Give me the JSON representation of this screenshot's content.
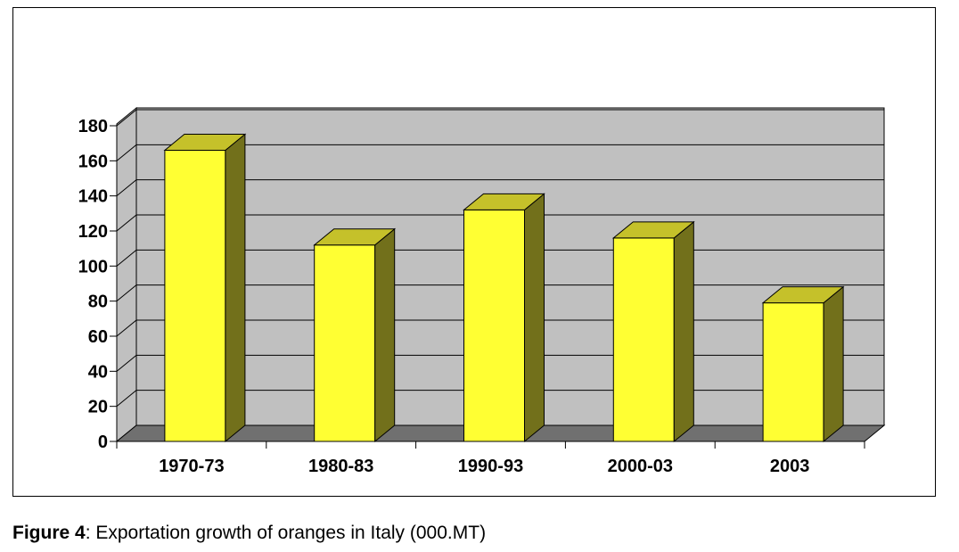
{
  "chart_data": {
    "type": "bar",
    "style": "3d-column",
    "categories": [
      "1970-73",
      "1980-83",
      "1990-93",
      "2000-03",
      "2003"
    ],
    "values": [
      166,
      112,
      132,
      116,
      79
    ],
    "yticks": [
      0,
      20,
      40,
      60,
      80,
      100,
      120,
      140,
      160,
      180
    ],
    "ylim": [
      0,
      180
    ],
    "grid": true,
    "legend": "none",
    "colors": {
      "bar_front": "#ffff33",
      "bar_side": "#72701b",
      "bar_top": "#c5c12a",
      "wall": "#c0c0c0",
      "floor": "#707070"
    }
  },
  "caption": {
    "label": "Figure 4",
    "text": ": Exportation growth of oranges in Italy (000.MT)"
  }
}
